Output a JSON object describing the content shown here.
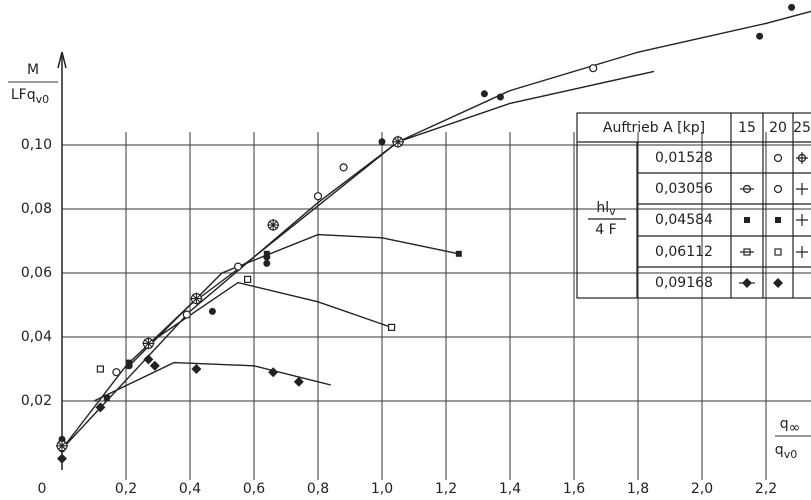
{
  "chart_data": {
    "type": "scatter",
    "y_label": {
      "top": "M",
      "bottom": "LFq",
      "bottom_sub": "v0"
    },
    "x_label": {
      "top": "q",
      "top_sub": "∞",
      "bottom": "q",
      "bottom_sub": "v0"
    },
    "xlim": [
      0,
      2.35
    ],
    "ylim": [
      0,
      0.145
    ],
    "grid": true,
    "xticks": [
      0,
      {
        "value": 0.2,
        "label": "0,2"
      },
      {
        "value": 0.4,
        "label": "0,4"
      },
      {
        "value": 0.6,
        "label": "0,6"
      },
      {
        "value": 0.8,
        "label": "0,8"
      },
      {
        "value": 1.0,
        "label": "1,0"
      },
      {
        "value": 1.2,
        "label": "1,2"
      },
      {
        "value": 1.4,
        "label": "1,4"
      },
      {
        "value": 1.6,
        "label": "1,6"
      },
      {
        "value": 1.8,
        "label": "1,8"
      },
      {
        "value": 2.0,
        "label": "2,0"
      },
      {
        "value": 2.2,
        "label": "2,2"
      }
    ],
    "yticks": [
      {
        "value": 0.02,
        "label": "0,02"
      },
      {
        "value": 0.04,
        "label": "0,04"
      },
      {
        "value": 0.06,
        "label": "0,06"
      },
      {
        "value": 0.08,
        "label": "0,08"
      },
      {
        "value": 0.1,
        "label": "0,10"
      }
    ],
    "series": [
      {
        "marker": "filled-circle",
        "color": "#222",
        "x": [
          0,
          0,
          0.21,
          0.47,
          0.64,
          0.64,
          1.0,
          1.32,
          1.37,
          2.18,
          2.28
        ],
        "values": [
          0.005,
          0.008,
          0.031,
          0.048,
          0.063,
          0.065,
          0.101,
          0.116,
          0.115,
          0.134,
          0.143
        ]
      },
      {
        "marker": "open-circle",
        "color": "#222",
        "x": [
          0.17,
          0.39,
          0.55,
          0.8,
          0.88,
          1.66
        ],
        "values": [
          0.029,
          0.047,
          0.062,
          0.084,
          0.093,
          0.124
        ]
      },
      {
        "marker": "filled-square",
        "color": "#222",
        "x": [
          0.14,
          0.21,
          0.64,
          1.24
        ],
        "values": [
          0.021,
          0.032,
          0.066,
          0.066
        ]
      },
      {
        "marker": "open-square",
        "color": "#222",
        "x": [
          0.12,
          0.58,
          1.03
        ],
        "values": [
          0.03,
          0.058,
          0.043
        ]
      },
      {
        "marker": "filled-diamond",
        "color": "#222",
        "x": [
          0,
          0.12,
          0.27,
          0.29,
          0.42,
          0.66,
          0.74
        ],
        "values": [
          0.002,
          0.018,
          0.033,
          0.031,
          0.03,
          0.029,
          0.026
        ]
      },
      {
        "marker": "crossed-circle",
        "color": "#222",
        "x": [
          0,
          0.27,
          0.42,
          0.66,
          1.05
        ],
        "values": [
          0.006,
          0.038,
          0.052,
          0.075,
          0.101
        ]
      }
    ],
    "curves": [
      {
        "color": "#222",
        "x": [
          0,
          0.2,
          0.4,
          0.6,
          0.8,
          1.05,
          1.4,
          1.8,
          2.2,
          2.35
        ],
        "values": [
          0.005,
          0.031,
          0.05,
          0.065,
          0.081,
          0.101,
          0.117,
          0.129,
          0.138,
          0.142
        ]
      },
      {
        "color": "#222",
        "x": [
          0,
          0.4,
          0.8,
          1.05,
          1.4,
          1.85
        ],
        "values": [
          0.005,
          0.048,
          0.082,
          0.101,
          0.113,
          0.123
        ]
      },
      {
        "color": "#222",
        "x": [
          0.2,
          0.5,
          0.8,
          1.0,
          1.24
        ],
        "values": [
          0.03,
          0.06,
          0.072,
          0.071,
          0.066
        ]
      },
      {
        "color": "#222",
        "x": [
          0.3,
          0.55,
          0.8,
          1.03
        ],
        "values": [
          0.04,
          0.057,
          0.051,
          0.043
        ]
      },
      {
        "color": "#222",
        "x": [
          0.1,
          0.35,
          0.6,
          0.84
        ],
        "values": [
          0.02,
          0.032,
          0.031,
          0.025
        ]
      }
    ],
    "table": {
      "header": "Auftrieb  A [kp]",
      "columns": [
        "15",
        "20",
        "25"
      ],
      "row_label": {
        "top": "hl",
        "top_sub": "v",
        "bottom": "4 F"
      },
      "rows": [
        "0,01528",
        "0,03056",
        "0,04584",
        "0,06112",
        "0,09168"
      ]
    }
  }
}
